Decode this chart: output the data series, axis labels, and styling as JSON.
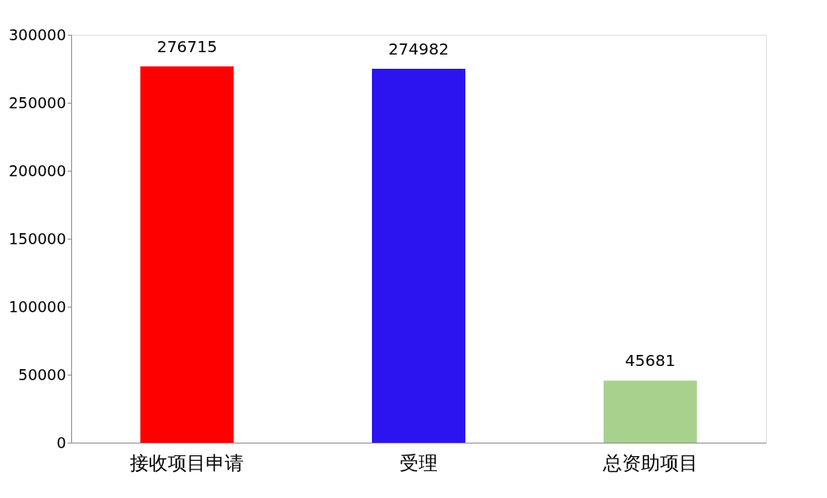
{
  "chart_data": {
    "type": "bar",
    "categories": [
      "接收项目申请",
      "受理",
      "总资助项目"
    ],
    "values": [
      276715,
      274982,
      45681
    ],
    "colors": [
      "#ff0000",
      "#2b14f0",
      "#a9d18e"
    ],
    "ylim": [
      0,
      300000
    ],
    "yticks": [
      0,
      50000,
      100000,
      150000,
      200000,
      250000,
      300000
    ],
    "grid": false,
    "data_labels": true
  }
}
